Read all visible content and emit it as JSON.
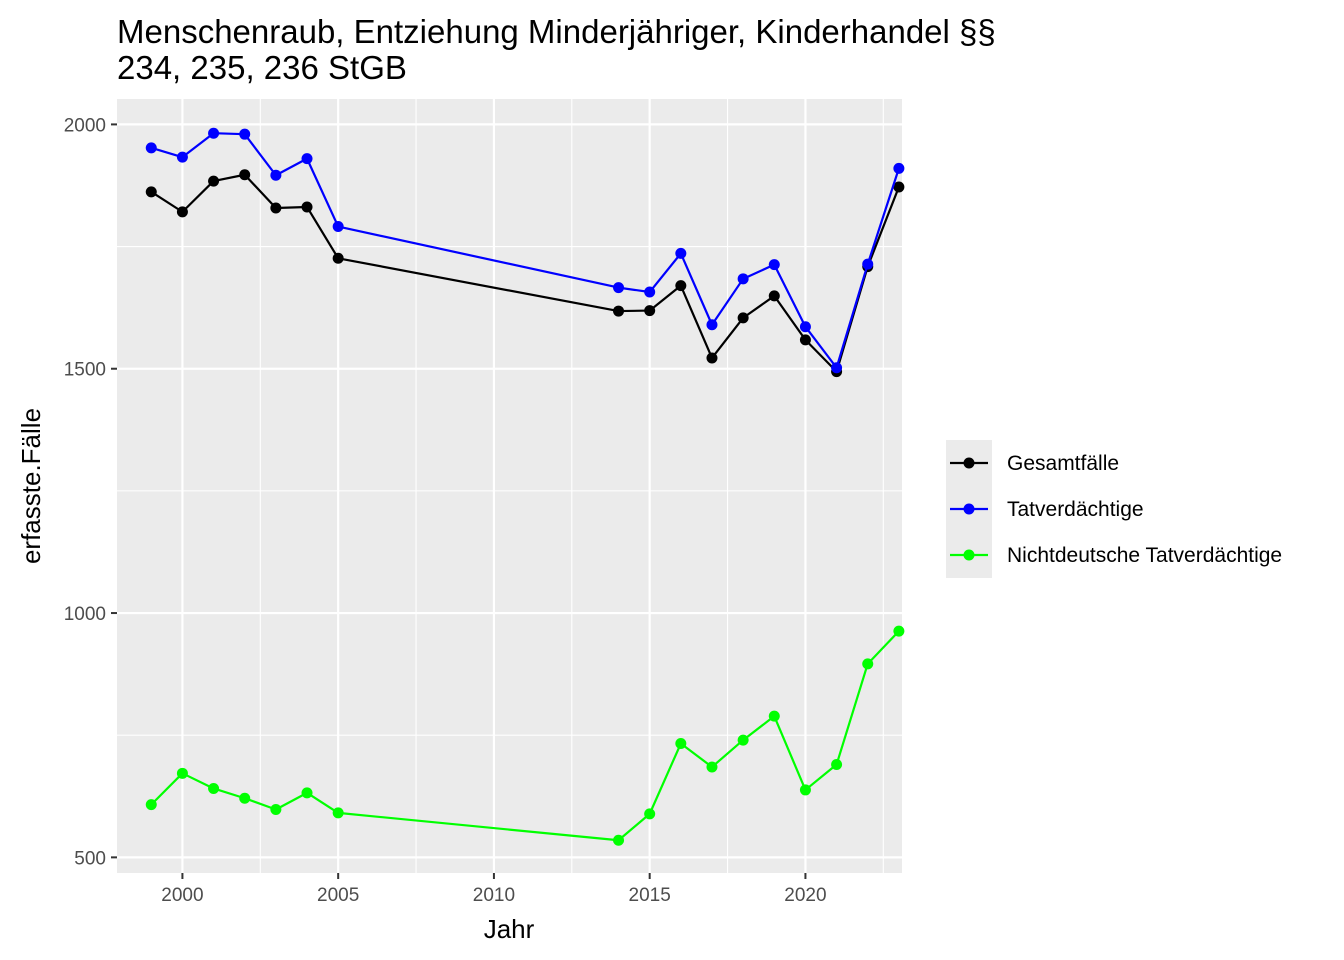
{
  "chart_data": {
    "type": "line",
    "title_lines": [
      "Menschenraub, Entziehung Minderjähriger, Kinderhandel §§",
      "234, 235, 236 StGB"
    ],
    "xlabel": "Jahr",
    "ylabel": "erfasste.Fälle",
    "xlim": [
      1997.9,
      2023.1
    ],
    "ylim": [
      468,
      2052
    ],
    "x_ticks": [
      2000,
      2005,
      2010,
      2015,
      2020
    ],
    "y_ticks": [
      500,
      1000,
      1500,
      2000
    ],
    "grid": true,
    "legend_position": "right",
    "x": [
      1999,
      2000,
      2001,
      2002,
      2003,
      2004,
      2005,
      2014,
      2015,
      2016,
      2017,
      2018,
      2019,
      2020,
      2021,
      2022,
      2023
    ],
    "series": [
      {
        "name": "Gesamtfälle",
        "color": "#000000",
        "values": [
          1862,
          1821,
          1884,
          1897,
          1829,
          1831,
          1726,
          1618,
          1619,
          1670,
          1522,
          1604,
          1649,
          1559,
          1494,
          1709,
          1872
        ]
      },
      {
        "name": "Tatverdächtige",
        "color": "#0000ff",
        "values": [
          1952,
          1933,
          1982,
          1980,
          1896,
          1930,
          1791,
          1666,
          1657,
          1736,
          1590,
          1684,
          1713,
          1586,
          1502,
          1714,
          1910
        ]
      },
      {
        "name": "Nichtdeutsche Tatverdächtige",
        "color": "#00ff00",
        "values": [
          608,
          672,
          641,
          621,
          598,
          632,
          591,
          535,
          589,
          733,
          685,
          740,
          789,
          638,
          690,
          896,
          963
        ]
      }
    ]
  }
}
